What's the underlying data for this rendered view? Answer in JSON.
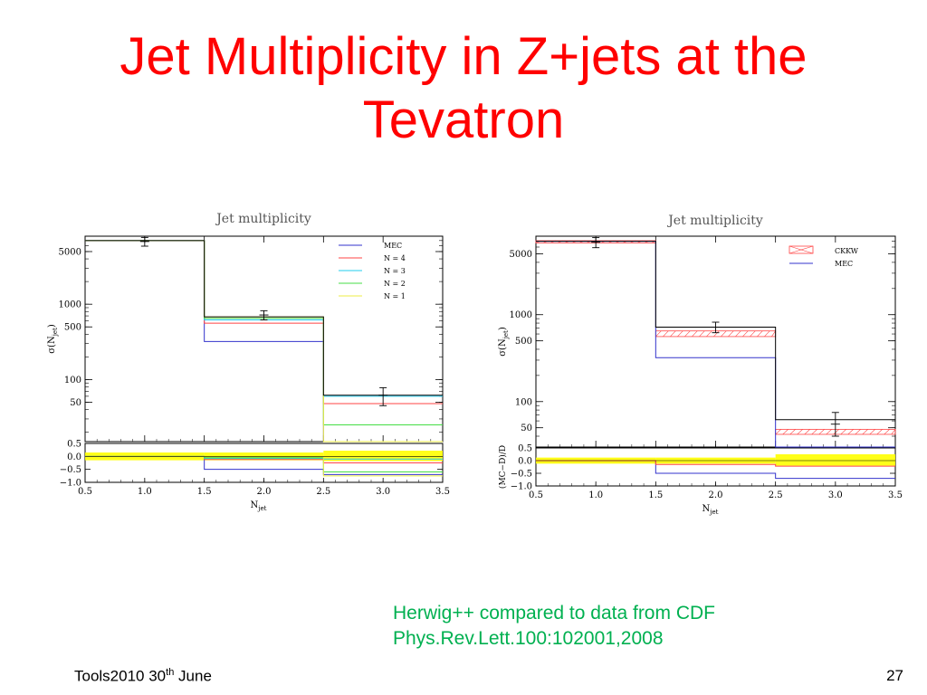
{
  "slide": {
    "title_line1": "Jet Multiplicity in Z+jets at the",
    "title_line2": "Tevatron",
    "caption_line1": "Herwig++ compared to data from CDF",
    "caption_line2": "Phys.Rev.Lett.100:102001,2008",
    "footer_left": "Tools2010 30",
    "footer_sup": "th",
    "footer_after": " June",
    "page_number": "27",
    "colors": {
      "title": "#ff0000",
      "caption": "#00b050"
    }
  },
  "chart_data": [
    {
      "type": "line",
      "title": "Jet multiplicity",
      "xlabel": "N_jet",
      "ylabel": "σ(N_jet)",
      "xlim": [
        0.5,
        3.5
      ],
      "ylog": true,
      "ylim": [
        15,
        8000
      ],
      "x_ticks": [
        "0.5",
        "1.0",
        "1.5",
        "2.0",
        "2.5",
        "3.0",
        "3.5"
      ],
      "y_ticks": [
        "5000",
        "1000",
        "500",
        "100",
        "50"
      ],
      "y_tick_values": [
        5000,
        1000,
        500,
        100,
        50
      ],
      "bins": [
        [
          0.5,
          1.5
        ],
        [
          1.5,
          2.5
        ],
        [
          2.5,
          3.5
        ]
      ],
      "data_points": {
        "x": [
          1.0,
          2.0,
          3.0
        ],
        "y": [
          6800,
          720,
          62
        ],
        "err_low": [
          5900,
          620,
          45
        ],
        "err_high": [
          7700,
          820,
          78
        ]
      },
      "series": [
        {
          "name": "MEC",
          "color": "#3333cc",
          "values": [
            7000,
            320,
            15
          ]
        },
        {
          "name": "N = 4",
          "color": "#ff4444",
          "values": [
            7000,
            560,
            48
          ]
        },
        {
          "name": "N = 3",
          "color": "#22ccee",
          "values": [
            7000,
            620,
            60
          ]
        },
        {
          "name": "N = 2",
          "color": "#44dd44",
          "values": [
            7000,
            650,
            25
          ]
        },
        {
          "name": "N = 1",
          "color": "#eeee44",
          "values": [
            7000,
            680,
            15
          ]
        }
      ],
      "black_histogram": [
        7000,
        680,
        62
      ],
      "ratio": {
        "ylabel": "",
        "ylim": [
          -1.0,
          0.5
        ],
        "y_ticks": [
          "0.5",
          "0.0",
          "−0.5",
          "−1.0"
        ],
        "y_tick_values": [
          0.5,
          0.0,
          -0.5,
          -1.0
        ],
        "band": [
          [
            -0.15,
            0.15
          ],
          [
            -0.15,
            0.15
          ],
          [
            -0.18,
            0.22
          ]
        ],
        "series": [
          {
            "name": "MEC",
            "values": [
              0.0,
              -0.5,
              -0.7
            ]
          },
          {
            "name": "N = 4",
            "values": [
              0.0,
              -0.12,
              -0.25
            ]
          },
          {
            "name": "N = 3",
            "values": [
              0.0,
              -0.08,
              -0.1
            ]
          },
          {
            "name": "N = 2",
            "values": [
              0.0,
              -0.05,
              -0.6
            ]
          },
          {
            "name": "N = 1",
            "values": [
              0.0,
              0.0,
              -0.75
            ]
          }
        ]
      }
    },
    {
      "type": "line",
      "title": "Jet multiplicity",
      "xlabel": "N_jet",
      "ylabel": "σ(N_jet)",
      "xlim": [
        0.5,
        3.5
      ],
      "ylog": true,
      "ylim": [
        30,
        8000
      ],
      "x_ticks": [
        "0.5",
        "1.0",
        "1.5",
        "2.0",
        "2.5",
        "3.0",
        "3.5"
      ],
      "y_ticks": [
        "5000",
        "1000",
        "500",
        "100",
        "50"
      ],
      "y_tick_values": [
        5000,
        1000,
        500,
        100,
        50
      ],
      "bins": [
        [
          0.5,
          1.5
        ],
        [
          1.5,
          2.5
        ],
        [
          2.5,
          3.5
        ]
      ],
      "data_points": {
        "x": [
          1.0,
          2.0,
          3.0
        ],
        "y": [
          6800,
          720,
          55
        ],
        "err_low": [
          5900,
          620,
          40
        ],
        "err_high": [
          7700,
          820,
          75
        ]
      },
      "series": [
        {
          "name": "CKKW",
          "color": "#ff4444",
          "band": [
            [
              6700,
              7100
            ],
            [
              560,
              650
            ],
            [
              42,
              48
            ]
          ]
        },
        {
          "name": "MEC",
          "color": "#3333cc",
          "values": [
            7000,
            320,
            30
          ]
        }
      ],
      "black_histogram": [
        7000,
        720,
        62
      ],
      "ratio": {
        "ylabel": "(MC−D)/D",
        "ylim": [
          -1.0,
          0.5
        ],
        "y_ticks": [
          "0.5",
          "0.0",
          "−0.5",
          "−1.0"
        ],
        "y_tick_values": [
          0.5,
          0.0,
          -0.5,
          -1.0
        ],
        "band": [
          [
            -0.12,
            0.12
          ],
          [
            -0.12,
            0.12
          ],
          [
            -0.2,
            0.25
          ]
        ],
        "series": [
          {
            "name": "MEC",
            "values": [
              0.0,
              -0.5,
              -0.7
            ]
          },
          {
            "name": "CKKW",
            "values": [
              0.0,
              -0.15,
              -0.22
            ]
          }
        ]
      }
    }
  ]
}
